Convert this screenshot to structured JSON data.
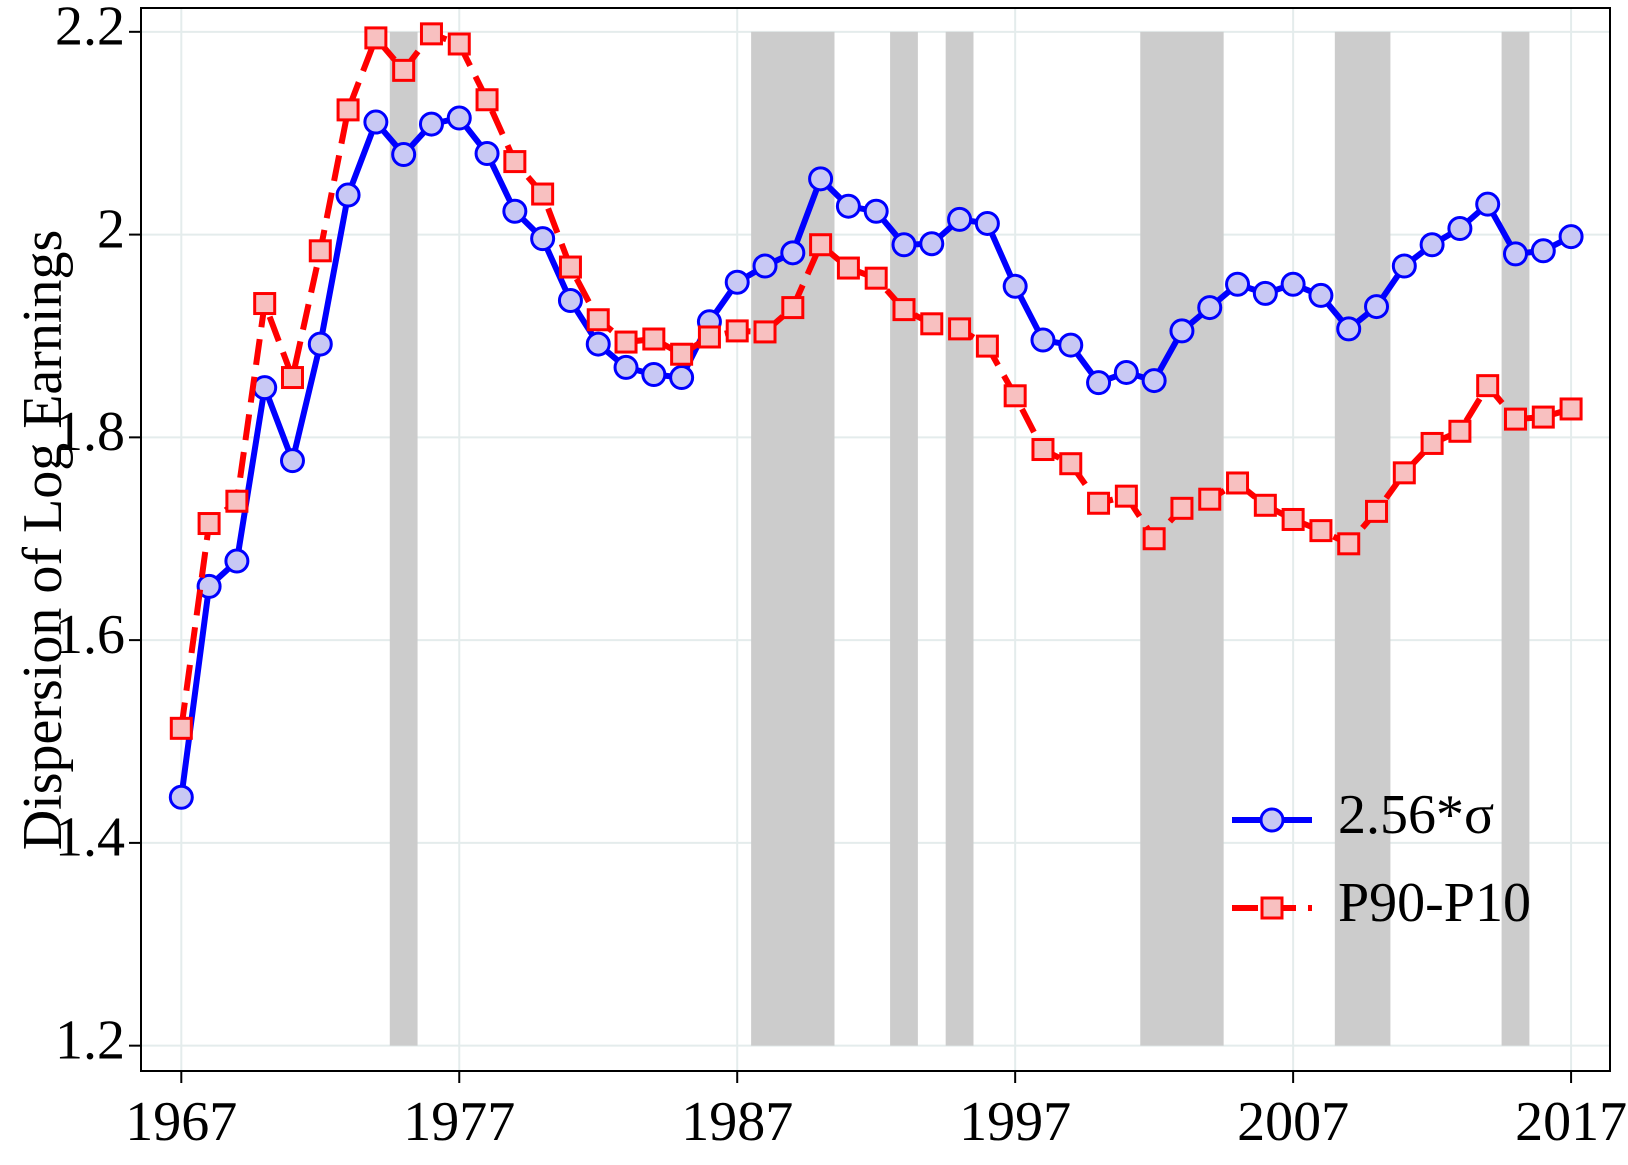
{
  "chart_data": {
    "type": "line",
    "y_label": "Dispersion of Log Earnings",
    "x": [
      1967,
      1968,
      1969,
      1970,
      1971,
      1972,
      1973,
      1974,
      1975,
      1976,
      1977,
      1978,
      1979,
      1980,
      1981,
      1982,
      1983,
      1984,
      1985,
      1986,
      1987,
      1988,
      1989,
      1990,
      1991,
      1992,
      1993,
      1994,
      1995,
      1996,
      1997,
      1998,
      1999,
      2000,
      2001,
      2002,
      2003,
      2004,
      2005,
      2006,
      2007,
      2008,
      2009,
      2010,
      2011,
      2012,
      2013,
      2014,
      2015,
      2016,
      2017
    ],
    "series": [
      {
        "name": "2.56*σ",
        "color": "#0000ff",
        "marker": "circle",
        "marker_fill": "#c8c8f4",
        "dashed": false,
        "values": [
          1.445,
          1.653,
          1.678,
          1.849,
          1.777,
          1.892,
          2.039,
          2.111,
          2.079,
          2.109,
          2.115,
          2.08,
          2.023,
          1.996,
          1.935,
          1.892,
          1.869,
          1.862,
          1.859,
          1.914,
          1.953,
          1.969,
          1.982,
          2.055,
          2.028,
          2.023,
          1.99,
          1.991,
          2.015,
          2.011,
          1.949,
          1.896,
          1.891,
          1.854,
          1.864,
          1.856,
          1.905,
          1.928,
          1.951,
          1.942,
          1.951,
          1.94,
          1.907,
          1.929,
          1.969,
          1.99,
          2.006,
          2.03,
          1.981,
          1.984,
          1.998
        ]
      },
      {
        "name": "P90-P10",
        "color": "#ff0000",
        "marker": "square",
        "marker_fill": "#f8c0c0",
        "dashed": true,
        "values": [
          1.513,
          1.715,
          1.737,
          1.932,
          1.859,
          1.984,
          2.123,
          2.194,
          2.162,
          2.198,
          2.188,
          2.133,
          2.072,
          2.04,
          1.968,
          1.916,
          1.894,
          1.897,
          1.882,
          1.899,
          1.905,
          1.904,
          1.928,
          1.99,
          1.967,
          1.957,
          1.926,
          1.912,
          1.907,
          1.89,
          1.841,
          1.788,
          1.774,
          1.735,
          1.742,
          1.7,
          1.73,
          1.739,
          1.755,
          1.733,
          1.719,
          1.708,
          1.695,
          1.727,
          1.765,
          1.794,
          1.806,
          1.851,
          1.818,
          1.82,
          1.828
        ]
      }
    ],
    "shaded_periods": [
      [
        1974.5,
        1975.5
      ],
      [
        1987.5,
        1990.5
      ],
      [
        1992.5,
        1993.5
      ],
      [
        1994.5,
        1995.5
      ],
      [
        2001.5,
        2004.5
      ],
      [
        2008.5,
        2010.5
      ],
      [
        2014.5,
        2015.5
      ]
    ],
    "shade_color": "#cccccc",
    "xlim": [
      1965.55,
      2018.4
    ],
    "ylim": [
      1.175,
      2.2235
    ],
    "xticks": [
      1967,
      1977,
      1987,
      1997,
      2007,
      2017
    ],
    "yticks": [
      1.2,
      1.4,
      1.6,
      1.8,
      2,
      2.2
    ],
    "grid": true,
    "legend": "lower right"
  }
}
